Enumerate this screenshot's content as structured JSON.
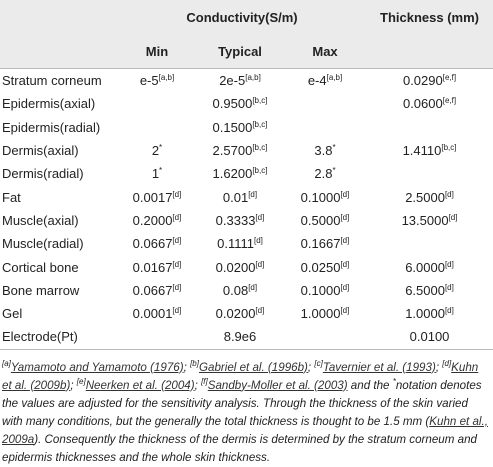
{
  "table": {
    "group_headers": [
      "Conductivity(S/m)",
      "Thickness (mm)"
    ],
    "sub_headers": [
      "Min",
      "Typical",
      "Max"
    ],
    "rows": [
      [
        "Stratum corneum",
        {
          "text": "e-5",
          "sup": "[a,b]"
        },
        {
          "text": "2e-5",
          "sup": "[a,b]"
        },
        {
          "text": "e-4",
          "sup": "[a,b]"
        },
        {
          "text": "0.0290",
          "sup": "[e,f]"
        }
      ],
      [
        "Epidermis(axial)",
        null,
        {
          "text": "0.9500",
          "sup": "[b,c]"
        },
        null,
        {
          "text": "0.0600",
          "sup": "[e,f]"
        }
      ],
      [
        "Epidermis(radial)",
        null,
        {
          "text": "0.1500",
          "sup": "[b,c]"
        },
        null,
        null
      ],
      [
        "Dermis(axial)",
        {
          "text": "2",
          "sup": "*"
        },
        {
          "text": "2.5700",
          "sup": "[b,c]"
        },
        {
          "text": "3.8",
          "sup": "*"
        },
        {
          "text": "1.4110",
          "sup": "[b,c]"
        }
      ],
      [
        "Dermis(radial)",
        {
          "text": "1",
          "sup": "*"
        },
        {
          "text": "1.6200",
          "sup": "[b,c]"
        },
        {
          "text": "2.8",
          "sup": "*"
        },
        null
      ],
      [
        "Fat",
        {
          "text": "0.0017",
          "sup": "[d]"
        },
        {
          "text": "0.01",
          "sup": "[d]"
        },
        {
          "text": "0.1000",
          "sup": "[d]"
        },
        {
          "text": "2.5000",
          "sup": "[d]"
        }
      ],
      [
        "Muscle(axial)",
        {
          "text": "0.2000",
          "sup": "[d]"
        },
        {
          "text": "0.3333",
          "sup": "[d]"
        },
        {
          "text": "0.5000",
          "sup": "[d]"
        },
        {
          "text": "13.5000",
          "sup": "[d]"
        }
      ],
      [
        "Muscle(radial)",
        {
          "text": "0.0667",
          "sup": "[d]"
        },
        {
          "text": "0.1111",
          "sup": "[d]"
        },
        {
          "text": "0.1667",
          "sup": "[d]"
        },
        null
      ],
      [
        "Cortical bone",
        {
          "text": "0.0167",
          "sup": "[d]"
        },
        {
          "text": "0.0200",
          "sup": "[d]"
        },
        {
          "text": "0.0250",
          "sup": "[d]"
        },
        {
          "text": "6.0000",
          "sup": "[d]"
        }
      ],
      [
        "Bone marrow",
        {
          "text": "0.0667",
          "sup": "[d]"
        },
        {
          "text": "0.08",
          "sup": "[d]"
        },
        {
          "text": "0.1000",
          "sup": "[d]"
        },
        {
          "text": "6.5000",
          "sup": "[d]"
        }
      ],
      [
        "Gel",
        {
          "text": "0.0001",
          "sup": "[d]"
        },
        {
          "text": "0.0200",
          "sup": "[d]"
        },
        {
          "text": "1.0000",
          "sup": "[d]"
        },
        {
          "text": "1.0000",
          "sup": "[d]"
        }
      ],
      [
        "Electrode(Pt)",
        null,
        "8.9e6",
        null,
        "0.0100"
      ]
    ]
  },
  "footnote": [
    {
      "sup": "[a]"
    },
    {
      "link": "Yamamoto and Yamamoto (1976)"
    },
    {
      "text": "; "
    },
    {
      "sup": "[b]"
    },
    {
      "link": "Gabriel et al. (1996b)"
    },
    {
      "text": "; "
    },
    {
      "sup": "[c]"
    },
    {
      "link": "Tavernier et al. (1993)"
    },
    {
      "text": "; "
    },
    {
      "sup": "[d]"
    },
    {
      "link": "Kuhn et al. (2009b)"
    },
    {
      "text": "; "
    },
    {
      "sup": "[e]"
    },
    {
      "link": "Neerken et al. (2004)"
    },
    {
      "text": "; "
    },
    {
      "sup": "[f]"
    },
    {
      "link": "Sandby-Moller et al. (2003)"
    },
    {
      "text": " and the "
    },
    {
      "sup": "*"
    },
    {
      "text": "notation denotes the values are adjusted for the sensitivity analysis. Through the thickness of the skin varied with many conditions, but the generally the total thickness is thought to be 1.5 mm ("
    },
    {
      "link": "Kuhn et al., 2009a"
    },
    {
      "text": "). Consequently the thickness of the dermis is determined by the stratum corneum and epidermis thicknesses and the whole skin thickness."
    }
  ]
}
